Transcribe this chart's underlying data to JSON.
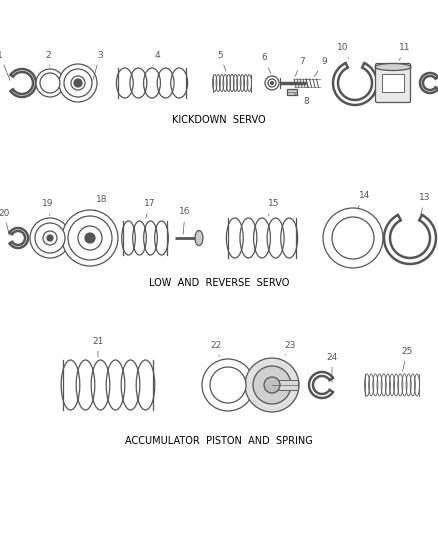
{
  "background_color": "#ffffff",
  "line_color": "#555555",
  "label_color": "#000000",
  "section1_label": "KICKDOWN  SERVO",
  "section2_label": "LOW  AND  REVERSE  SERVO",
  "section3_label": "ACCUMULATOR  PISTON  AND  SPRING",
  "fig_width": 4.38,
  "fig_height": 5.33,
  "dpi": 100,
  "font_size_section": 7,
  "font_size_label": 6.5
}
